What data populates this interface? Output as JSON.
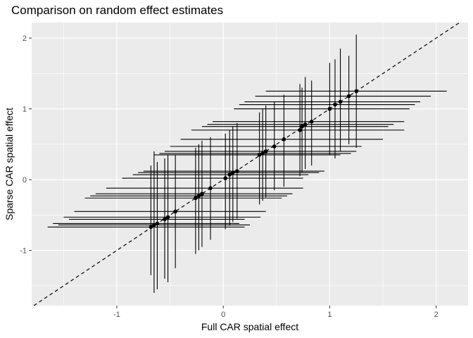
{
  "chart_data": {
    "type": "scatter",
    "title": "Comparison on random effect estimates",
    "xlabel": "Full CAR spatial effect",
    "ylabel": "Sparse CAR spatial effect",
    "xlim": [
      -1.8,
      2.3
    ],
    "ylim": [
      -1.78,
      2.22
    ],
    "x_ticks": [
      -1,
      0,
      1,
      2
    ],
    "y_ticks": [
      -1,
      0,
      1,
      2
    ],
    "tick_labels_x": [
      "-1",
      "0",
      "1",
      "2"
    ],
    "tick_labels_y": [
      "-1",
      "0",
      "1",
      "2"
    ],
    "grid": true,
    "reference_line": {
      "slope": 1,
      "intercept": 0,
      "style": "dashed"
    },
    "points": [
      {
        "x": 1.25,
        "y": 1.25,
        "xlo": 0.4,
        "xhi": 2.1,
        "ylo": 0.45,
        "yhi": 2.05
      },
      {
        "x": 1.18,
        "y": 1.18,
        "xlo": 0.3,
        "xhi": 1.95,
        "ylo": 0.5,
        "yhi": 1.75
      },
      {
        "x": 1.1,
        "y": 1.1,
        "xlo": 0.2,
        "xhi": 1.85,
        "ylo": 0.4,
        "yhi": 1.85
      },
      {
        "x": 1.05,
        "y": 1.06,
        "xlo": 0.15,
        "xhi": 1.8,
        "ylo": 0.3,
        "yhi": 1.7
      },
      {
        "x": 1.0,
        "y": 1.0,
        "xlo": 0.1,
        "xhi": 1.75,
        "ylo": 0.35,
        "yhi": 1.65
      },
      {
        "x": 0.83,
        "y": 0.82,
        "xlo": -0.1,
        "xhi": 1.7,
        "ylo": 0.2,
        "yhi": 1.4
      },
      {
        "x": 0.77,
        "y": 0.78,
        "xlo": -0.15,
        "xhi": 1.6,
        "ylo": 0.15,
        "yhi": 1.45
      },
      {
        "x": 0.74,
        "y": 0.75,
        "xlo": -0.2,
        "xhi": 1.55,
        "ylo": 0.1,
        "yhi": 1.3
      },
      {
        "x": 0.72,
        "y": 0.7,
        "xlo": -0.3,
        "xhi": 1.7,
        "ylo": 0.05,
        "yhi": 1.35
      },
      {
        "x": 0.57,
        "y": 0.57,
        "xlo": -0.4,
        "xhi": 1.5,
        "ylo": -0.1,
        "yhi": 1.2
      },
      {
        "x": 0.48,
        "y": 0.47,
        "xlo": -0.5,
        "xhi": 1.3,
        "ylo": -0.15,
        "yhi": 1.1
      },
      {
        "x": 0.4,
        "y": 0.4,
        "xlo": -0.55,
        "xhi": 1.25,
        "ylo": -0.25,
        "yhi": 1.05
      },
      {
        "x": 0.37,
        "y": 0.37,
        "xlo": -0.6,
        "xhi": 1.2,
        "ylo": -0.3,
        "yhi": 1.0
      },
      {
        "x": 0.34,
        "y": 0.35,
        "xlo": -0.65,
        "xhi": 1.1,
        "ylo": -0.35,
        "yhi": 0.95
      },
      {
        "x": 0.13,
        "y": 0.12,
        "xlo": -0.75,
        "xhi": 0.95,
        "ylo": -0.55,
        "yhi": 0.8
      },
      {
        "x": 0.09,
        "y": 0.1,
        "xlo": -0.8,
        "xhi": 0.9,
        "ylo": -0.6,
        "yhi": 0.75
      },
      {
        "x": 0.06,
        "y": 0.07,
        "xlo": -0.85,
        "xhi": 0.8,
        "ylo": -0.65,
        "yhi": 0.7
      },
      {
        "x": 0.02,
        "y": 0.02,
        "xlo": -0.95,
        "xhi": 0.75,
        "ylo": -0.7,
        "yhi": 0.65
      },
      {
        "x": -0.12,
        "y": -0.12,
        "xlo": -1.1,
        "xhi": 0.75,
        "ylo": -0.85,
        "yhi": 0.6
      },
      {
        "x": -0.2,
        "y": -0.2,
        "xlo": -1.2,
        "xhi": 0.65,
        "ylo": -0.95,
        "yhi": 0.55
      },
      {
        "x": -0.23,
        "y": -0.23,
        "xlo": -1.25,
        "xhi": 0.6,
        "ylo": -1.0,
        "yhi": 0.5
      },
      {
        "x": -0.26,
        "y": -0.26,
        "xlo": -1.3,
        "xhi": 0.55,
        "ylo": -1.05,
        "yhi": 0.45
      },
      {
        "x": -0.45,
        "y": -0.45,
        "xlo": -1.4,
        "xhi": 0.4,
        "ylo": -1.25,
        "yhi": 0.35
      },
      {
        "x": -0.52,
        "y": -0.53,
        "xlo": -1.5,
        "xhi": 0.35,
        "ylo": -1.45,
        "yhi": 0.35
      },
      {
        "x": -0.55,
        "y": -0.56,
        "xlo": -1.45,
        "xhi": 0.2,
        "ylo": -1.4,
        "yhi": 0.3
      },
      {
        "x": -0.62,
        "y": -0.62,
        "xlo": -1.6,
        "xhi": 0.15,
        "ylo": -1.55,
        "yhi": 0.25
      },
      {
        "x": -0.65,
        "y": -0.64,
        "xlo": -1.55,
        "xhi": 0.25,
        "ylo": -1.6,
        "yhi": 0.4
      },
      {
        "x": -0.68,
        "y": -0.67,
        "xlo": -1.65,
        "xhi": 0.2,
        "ylo": -1.35,
        "yhi": 0.2
      }
    ]
  }
}
